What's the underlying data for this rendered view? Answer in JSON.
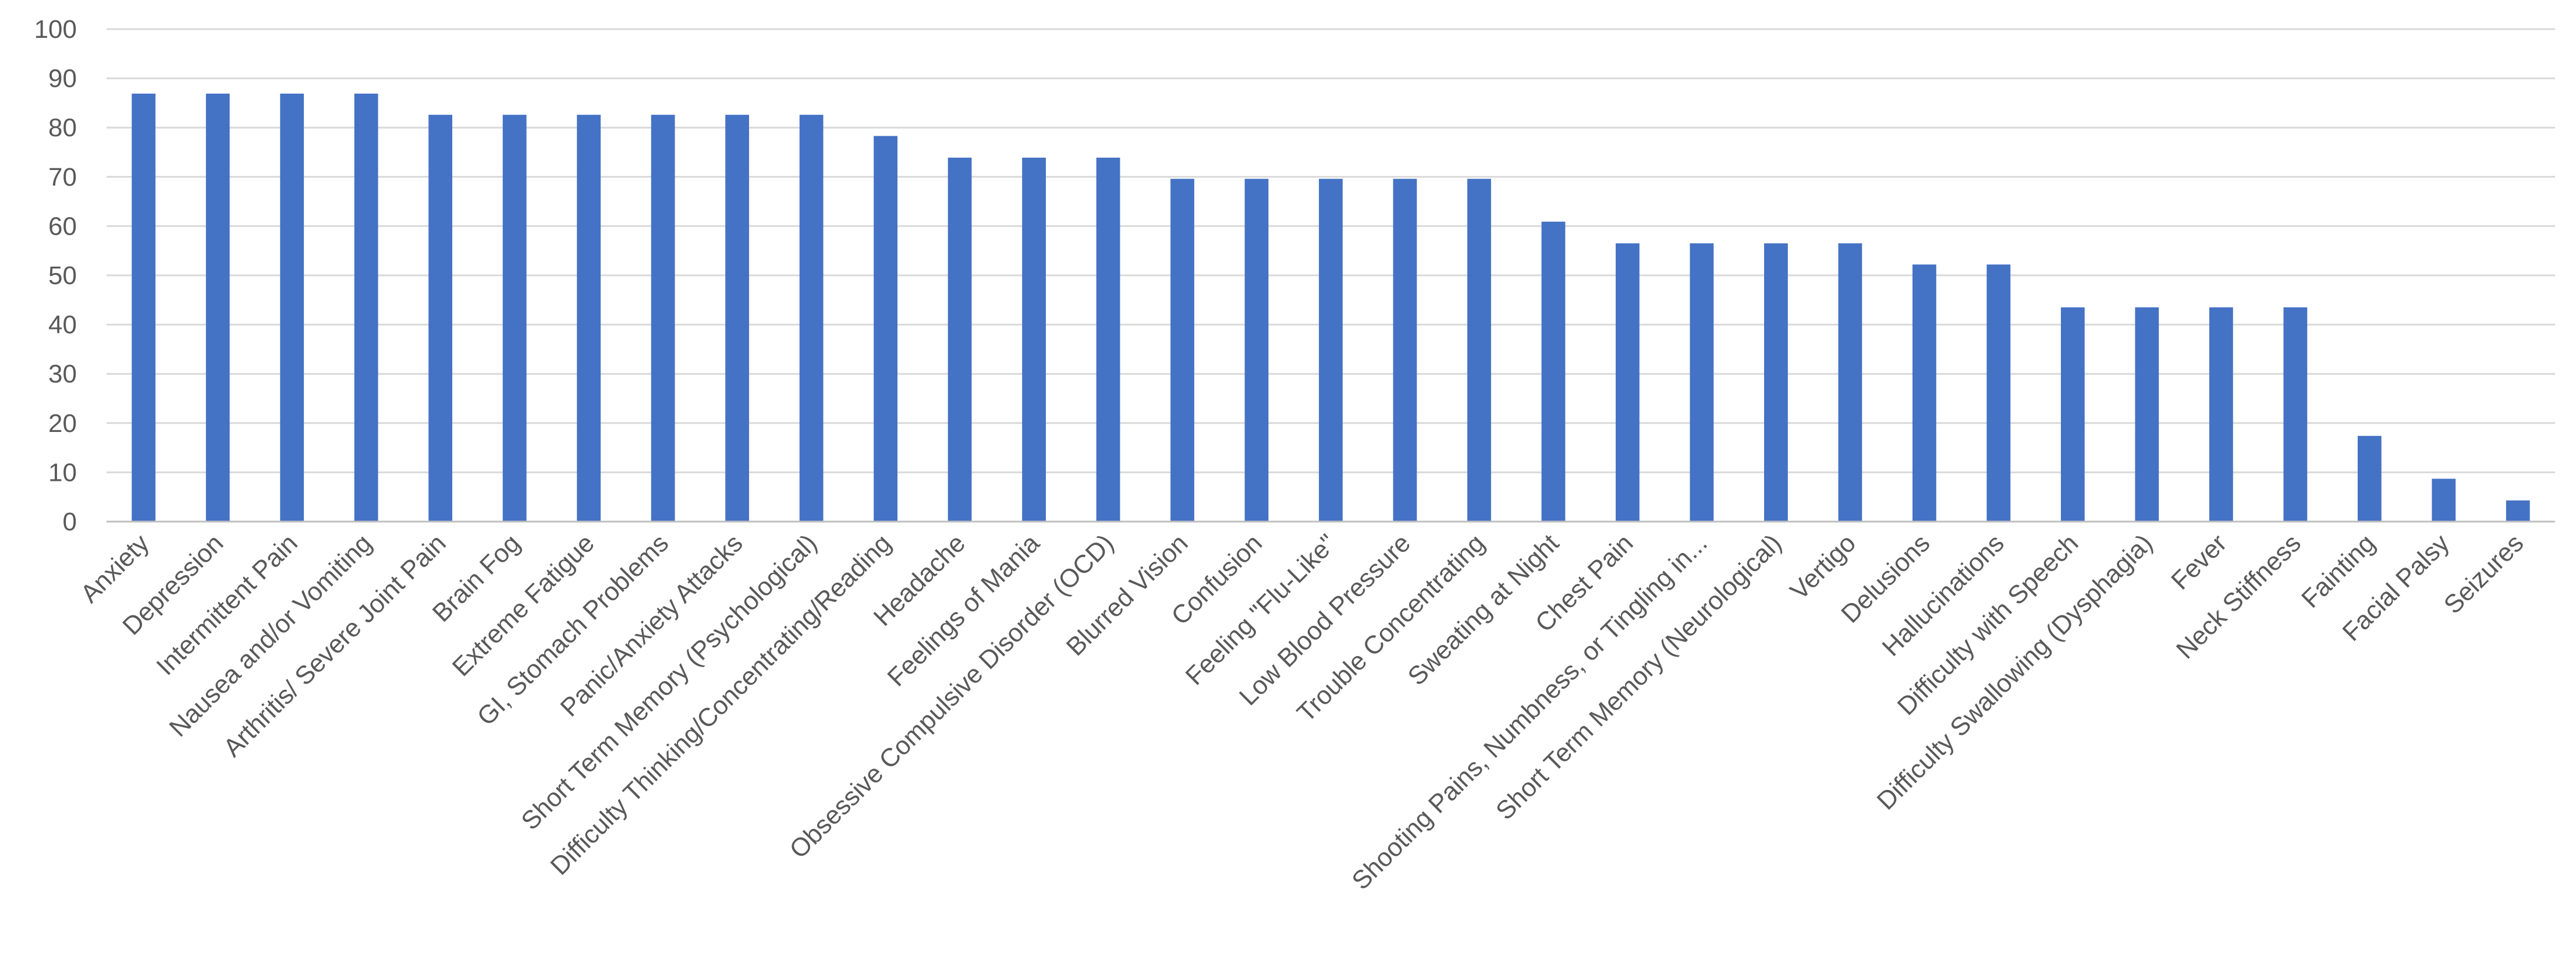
{
  "chart_data": {
    "type": "bar",
    "categories": [
      "Anxiety",
      "Depression",
      "Intermittent Pain",
      "Nausea and/or Vomiting",
      "Arthritis/ Severe Joint Pain",
      "Brain Fog",
      "Extreme Fatigue",
      "GI, Stomach Problems",
      "Panic/Anxiety Attacks",
      "Short Term Memory (Psychological)",
      "Difficulty Thinking/Concentrating/Reading",
      "Headache",
      "Feelings of Mania",
      "Obsessive Compulsive Disorder (OCD)",
      "Blurred Vision",
      "Confusion",
      "Feeling \"Flu-Like\"",
      "Low Blood Pressure",
      "Trouble Concentrating",
      "Sweating at Night",
      "Chest Pain",
      "Shooting Pains, Numbness, or Tingling in...",
      "Short Term Memory (Neurological)",
      "Vertigo",
      "Delusions",
      "Hallucinations",
      "Difficulty with Speech",
      "Difficulty Swallowing (Dysphagia)",
      "Fever",
      "Neck Stiffness",
      "Fainting",
      "Facial Palsy",
      "Seizures"
    ],
    "values": [
      86.9,
      86.9,
      86.9,
      86.9,
      82.6,
      82.6,
      82.6,
      82.6,
      82.6,
      82.6,
      78.3,
      73.9,
      73.9,
      73.9,
      69.6,
      69.6,
      69.6,
      69.6,
      69.6,
      60.9,
      56.5,
      56.5,
      56.5,
      56.5,
      52.2,
      52.2,
      43.5,
      43.5,
      43.5,
      43.5,
      17.4,
      8.7,
      4.3
    ],
    "ylim": [
      0,
      100
    ],
    "yticks": [
      0,
      10,
      20,
      30,
      40,
      50,
      60,
      70,
      80,
      90,
      100
    ],
    "grid": true,
    "bar_color": "#4472C4",
    "title": "",
    "xlabel": "",
    "ylabel": ""
  }
}
